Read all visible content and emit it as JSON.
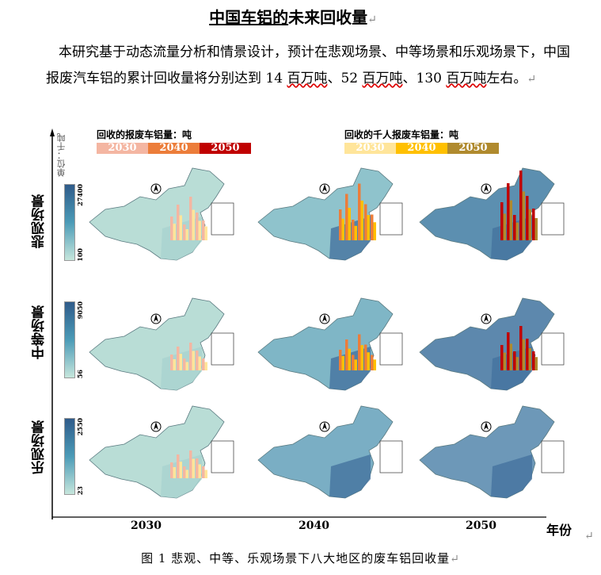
{
  "title": {
    "underlined": "中国车铝的",
    "rest": "未来回收量"
  },
  "paragraph": {
    "text1": "本研究基于动态流量分析和情景设计，预计在悲观场景、中等场景和乐观场景下，中国报废汽车铝的累计回收量将分别达到 14 ",
    "u1": "百万吨",
    "text2": "、52 ",
    "u2": "百万吨",
    "text3": "、130 ",
    "u3": "百万吨",
    "text4": "左右。"
  },
  "paragraph_mark": "↵",
  "figure": {
    "unit": "单位：千吨",
    "legend_left": {
      "title": "回收的报废车铝量：吨",
      "items": [
        {
          "label": "2030",
          "color": "#f4b6a2"
        },
        {
          "label": "2040",
          "color": "#ec7d3a"
        },
        {
          "label": "2050",
          "color": "#c00000"
        }
      ]
    },
    "legend_right": {
      "title": "回收的千人报废车铝量：吨",
      "items": [
        {
          "label": "2030",
          "color": "#ffe59a"
        },
        {
          "label": "2040",
          "color": "#ffc000"
        },
        {
          "label": "2050",
          "color": "#b08a2e"
        }
      ]
    },
    "rows": [
      {
        "label": "悲观场景",
        "max": "27400",
        "min": "100"
      },
      {
        "label": "中等场景",
        "max": "9050",
        "min": "56"
      },
      {
        "label": "乐观场景",
        "max": "2550",
        "min": "23"
      }
    ],
    "columns": [
      "2030",
      "2040",
      "2050"
    ],
    "x_axis_label": "年份",
    "north": "N"
  },
  "caption": "图 1  悲观、中等、乐观场景下八大地区的废车铝回收量"
}
